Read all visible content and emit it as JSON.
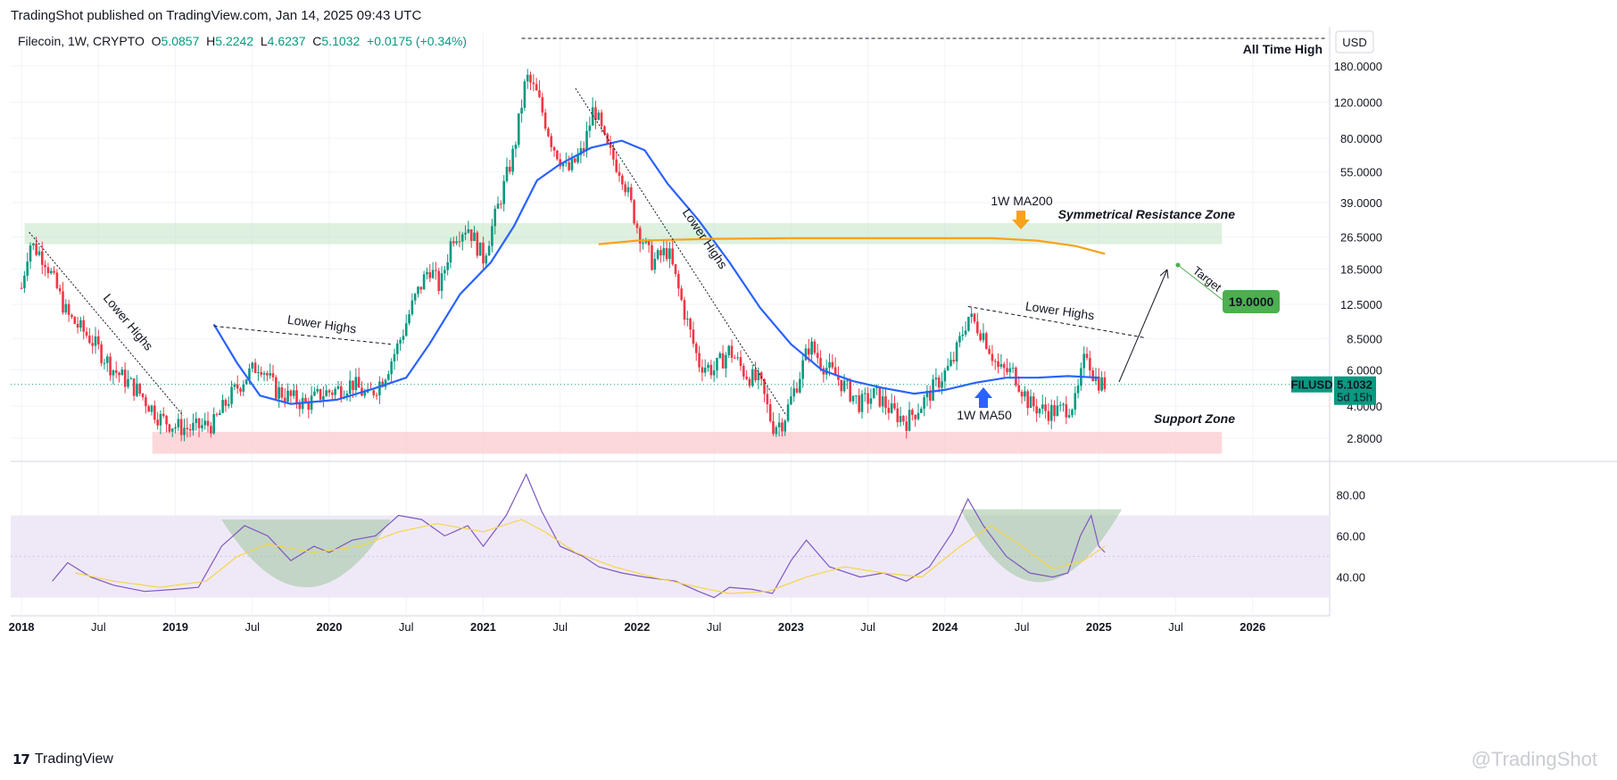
{
  "header": {
    "published": "TradingShot published on TradingView.com, Jan 14, 2025 09:43 UTC"
  },
  "legend": {
    "symbol": "Filecoin, 1W, CRYPTO",
    "o_label": "O",
    "o_value": "5.0857",
    "h_label": "H",
    "h_value": "5.2242",
    "l_label": "L",
    "l_value": "4.6237",
    "c_label": "C",
    "c_value": "5.1032",
    "change": "+0.0175 (+0.34%)"
  },
  "currency": "USD",
  "price_tag": {
    "symbol": "FILUSD",
    "price": "5.1032",
    "countdown": "5d 15h"
  },
  "target_tag": "19.0000",
  "annotations": {
    "ath": "All Time High",
    "lower_highs_1": "Lower Highs",
    "lower_highs_2": "Lower Highs",
    "lower_highs_3": "Lower Highs",
    "lower_highs_4": "Lower Highs",
    "ma200": "1W MA200",
    "ma50": "1W MA50",
    "resistance": "Symmetrical Resistance Zone",
    "support": "Support Zone",
    "target": "Target"
  },
  "footer": {
    "brand": "TradingView",
    "watermark": "@TradingShot"
  },
  "colors": {
    "up": "#089981",
    "down": "#f23645",
    "ma50": "#2962ff",
    "ma200": "#f7a21b",
    "resistance_zone": "#c8e6c9",
    "support_zone": "#fccbcd",
    "rsi": "#7e57c2",
    "rsi_ma": "#f5d547",
    "rsi_band": "#ede7f6",
    "target": "#4caf50",
    "bowl": "#a5c8a5"
  },
  "chart_data": {
    "type": "candlestick",
    "title": "Filecoin, 1W, CRYPTO",
    "y_scale": "log",
    "ylim": [
      2.2,
      260
    ],
    "y_ticks": [
      "180.0000",
      "120.0000",
      "80.0000",
      "55.0000",
      "39.0000",
      "26.5000",
      "18.5000",
      "12.5000",
      "8.5000",
      "6.0000",
      "4.0000",
      "2.8000"
    ],
    "x_ticks": [
      "2018",
      "Jul",
      "2019",
      "Jul",
      "2020",
      "Jul",
      "2021",
      "Jul",
      "2022",
      "Jul",
      "2023",
      "Jul",
      "2024",
      "Jul",
      "2025",
      "Jul",
      "2026"
    ],
    "close_path": [
      [
        2018.0,
        15
      ],
      [
        2018.05,
        25
      ],
      [
        2018.15,
        21
      ],
      [
        2018.3,
        11
      ],
      [
        2018.45,
        8.5
      ],
      [
        2018.6,
        6
      ],
      [
        2018.75,
        4.8
      ],
      [
        2018.9,
        3.5
      ],
      [
        2019.0,
        3.2
      ],
      [
        2019.1,
        3.1
      ],
      [
        2019.25,
        3.3
      ],
      [
        2019.35,
        4.4
      ],
      [
        2019.45,
        5.5
      ],
      [
        2019.55,
        6.5
      ],
      [
        2019.65,
        4.8
      ],
      [
        2019.75,
        4.4
      ],
      [
        2019.85,
        4.1
      ],
      [
        2019.95,
        4.6
      ],
      [
        2020.05,
        4.8
      ],
      [
        2020.15,
        5.2
      ],
      [
        2020.25,
        4.4
      ],
      [
        2020.35,
        5.5
      ],
      [
        2020.45,
        8
      ],
      [
        2020.55,
        13
      ],
      [
        2020.65,
        19
      ],
      [
        2020.72,
        15
      ],
      [
        2020.8,
        27
      ],
      [
        2020.9,
        30
      ],
      [
        2021.0,
        21
      ],
      [
        2021.1,
        38
      ],
      [
        2021.2,
        70
      ],
      [
        2021.28,
        160
      ],
      [
        2021.35,
        130
      ],
      [
        2021.45,
        75
      ],
      [
        2021.55,
        55
      ],
      [
        2021.65,
        70
      ],
      [
        2021.72,
        115
      ],
      [
        2021.8,
        72
      ],
      [
        2021.9,
        55
      ],
      [
        2022.0,
        30
      ],
      [
        2022.1,
        20
      ],
      [
        2022.2,
        23
      ],
      [
        2022.3,
        12
      ],
      [
        2022.4,
        6.5
      ],
      [
        2022.5,
        6
      ],
      [
        2022.6,
        7.5
      ],
      [
        2022.7,
        5.8
      ],
      [
        2022.8,
        5.2
      ],
      [
        2022.88,
        3.2
      ],
      [
        2022.95,
        3.4
      ],
      [
        2023.05,
        5.5
      ],
      [
        2023.12,
        8
      ],
      [
        2023.2,
        6.5
      ],
      [
        2023.3,
        5.5
      ],
      [
        2023.45,
        4.1
      ],
      [
        2023.55,
        4.6
      ],
      [
        2023.65,
        3.8
      ],
      [
        2023.75,
        3.4
      ],
      [
        2023.85,
        4.1
      ],
      [
        2023.95,
        5.2
      ],
      [
        2024.05,
        6.5
      ],
      [
        2024.15,
        11
      ],
      [
        2024.25,
        9
      ],
      [
        2024.35,
        6
      ],
      [
        2024.45,
        5.8
      ],
      [
        2024.55,
        4.1
      ],
      [
        2024.65,
        3.8
      ],
      [
        2024.75,
        3.8
      ],
      [
        2024.85,
        4.2
      ],
      [
        2024.92,
        7.5
      ],
      [
        2024.97,
        5.5
      ],
      [
        2025.04,
        5.1
      ]
    ],
    "series": [
      {
        "name": "1W MA50",
        "values": [
          [
            2019.25,
            10
          ],
          [
            2019.4,
            6.5
          ],
          [
            2019.55,
            4.5
          ],
          [
            2019.75,
            4.1
          ],
          [
            2020.05,
            4.3
          ],
          [
            2020.3,
            4.9
          ],
          [
            2020.5,
            5.5
          ],
          [
            2020.65,
            8
          ],
          [
            2020.85,
            14
          ],
          [
            2021.05,
            20
          ],
          [
            2021.2,
            30
          ],
          [
            2021.35,
            50
          ],
          [
            2021.5,
            60
          ],
          [
            2021.7,
            72
          ],
          [
            2021.9,
            78
          ],
          [
            2022.05,
            70
          ],
          [
            2022.2,
            48
          ],
          [
            2022.4,
            32
          ],
          [
            2022.6,
            20
          ],
          [
            2022.8,
            12
          ],
          [
            2023.0,
            8
          ],
          [
            2023.2,
            6
          ],
          [
            2023.4,
            5.3
          ],
          [
            2023.6,
            4.9
          ],
          [
            2023.8,
            4.6
          ],
          [
            2024.0,
            4.8
          ],
          [
            2024.2,
            5.2
          ],
          [
            2024.4,
            5.5
          ],
          [
            2024.6,
            5.5
          ],
          [
            2024.8,
            5.6
          ],
          [
            2025.0,
            5.5
          ]
        ]
      },
      {
        "name": "1W MA200",
        "values": [
          [
            2021.75,
            24.5
          ],
          [
            2022.0,
            25.5
          ],
          [
            2022.5,
            26
          ],
          [
            2023.0,
            26.2
          ],
          [
            2023.5,
            26.2
          ],
          [
            2024.0,
            26.2
          ],
          [
            2024.3,
            26.2
          ],
          [
            2024.6,
            25.5
          ],
          [
            2024.85,
            24
          ],
          [
            2025.04,
            22
          ]
        ]
      }
    ],
    "zones": [
      {
        "name": "Symmetrical Resistance Zone",
        "low": 24.5,
        "high": 31
      },
      {
        "name": "Support Zone",
        "low": 2.35,
        "high": 3.0
      }
    ],
    "target_value": 19.0,
    "rsi": {
      "y_ticks": [
        "80.00",
        "60.00",
        "40.00"
      ],
      "band": [
        30,
        70
      ],
      "values": [
        [
          2018.2,
          38
        ],
        [
          2018.3,
          47
        ],
        [
          2018.45,
          40
        ],
        [
          2018.6,
          36
        ],
        [
          2018.8,
          33
        ],
        [
          2019.0,
          34
        ],
        [
          2019.15,
          35
        ],
        [
          2019.3,
          55
        ],
        [
          2019.45,
          65
        ],
        [
          2019.6,
          60
        ],
        [
          2019.75,
          48
        ],
        [
          2019.9,
          55
        ],
        [
          2020.0,
          52
        ],
        [
          2020.15,
          58
        ],
        [
          2020.3,
          60
        ],
        [
          2020.45,
          70
        ],
        [
          2020.6,
          68
        ],
        [
          2020.75,
          60
        ],
        [
          2020.9,
          65
        ],
        [
          2021.0,
          55
        ],
        [
          2021.15,
          70
        ],
        [
          2021.28,
          90
        ],
        [
          2021.38,
          72
        ],
        [
          2021.5,
          55
        ],
        [
          2021.65,
          50
        ],
        [
          2021.75,
          45
        ],
        [
          2021.9,
          42
        ],
        [
          2022.05,
          40
        ],
        [
          2022.25,
          38
        ],
        [
          2022.4,
          33
        ],
        [
          2022.5,
          30
        ],
        [
          2022.6,
          35
        ],
        [
          2022.75,
          34
        ],
        [
          2022.88,
          32
        ],
        [
          2023.0,
          48
        ],
        [
          2023.1,
          58
        ],
        [
          2023.25,
          45
        ],
        [
          2023.45,
          40
        ],
        [
          2023.6,
          42
        ],
        [
          2023.75,
          38
        ],
        [
          2023.9,
          45
        ],
        [
          2024.05,
          62
        ],
        [
          2024.15,
          78
        ],
        [
          2024.25,
          65
        ],
        [
          2024.4,
          50
        ],
        [
          2024.55,
          42
        ],
        [
          2024.7,
          40
        ],
        [
          2024.8,
          42
        ],
        [
          2024.88,
          60
        ],
        [
          2024.95,
          70
        ],
        [
          2025.0,
          55
        ],
        [
          2025.04,
          52
        ]
      ],
      "ma": [
        [
          2018.35,
          42
        ],
        [
          2018.6,
          38
        ],
        [
          2018.9,
          35
        ],
        [
          2019.2,
          38
        ],
        [
          2019.4,
          50
        ],
        [
          2019.6,
          56
        ],
        [
          2019.9,
          52
        ],
        [
          2020.2,
          55
        ],
        [
          2020.45,
          62
        ],
        [
          2020.7,
          66
        ],
        [
          2021.0,
          62
        ],
        [
          2021.25,
          68
        ],
        [
          2021.4,
          62
        ],
        [
          2021.6,
          52
        ],
        [
          2021.85,
          45
        ],
        [
          2022.1,
          40
        ],
        [
          2022.4,
          35
        ],
        [
          2022.6,
          32
        ],
        [
          2022.85,
          33
        ],
        [
          2023.1,
          40
        ],
        [
          2023.35,
          45
        ],
        [
          2023.6,
          42
        ],
        [
          2023.85,
          40
        ],
        [
          2024.1,
          55
        ],
        [
          2024.3,
          65
        ],
        [
          2024.5,
          55
        ],
        [
          2024.7,
          44
        ],
        [
          2024.9,
          48
        ],
        [
          2025.04,
          55
        ]
      ]
    }
  }
}
